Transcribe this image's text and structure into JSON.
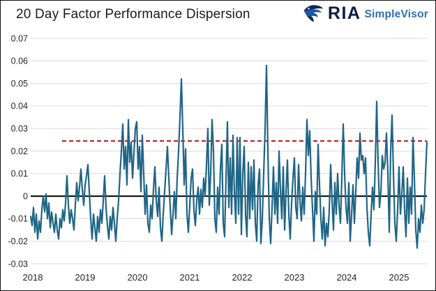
{
  "header": {
    "title": "20 Day Factor Performance Dispersion",
    "logo": {
      "brand": "RIA",
      "product": "SimpleVisor"
    }
  },
  "chart_data": {
    "type": "line",
    "title": "20 Day Factor Performance Dispersion",
    "xlabel": "",
    "ylabel": "",
    "xlim": [
      2017.96,
      2025.534
    ],
    "ylim": [
      -0.03,
      0.07
    ],
    "grid": "horizontal-only",
    "legend": "none",
    "yticks": [
      0.07,
      0.06,
      0.05,
      0.04,
      0.03,
      0.02,
      0.01,
      0,
      -0.01,
      -0.02,
      -0.03
    ],
    "ytick_labels": [
      "0.07",
      "0.06",
      "0.05",
      "0.04",
      "0.03",
      "0.02",
      "0.01",
      "0",
      "-0.01",
      "-0.02",
      "-0.03"
    ],
    "xticks": [
      2018,
      2019,
      2020,
      2021,
      2022,
      2023,
      2024,
      2025
    ],
    "xtick_labels": [
      "2018",
      "2019",
      "2020",
      "2021",
      "2022",
      "2023",
      "2024",
      "2025"
    ],
    "colors": {
      "grid": "#d9d9d9",
      "tick_text": "#262626",
      "line": "#1f6585",
      "zero_line": "#000000",
      "threshold_line": "#bc2823"
    },
    "reference_lines": [
      {
        "name": "zero-line",
        "value": 0,
        "color": "#000000",
        "style": "solid",
        "width": 2,
        "span": [
          2017.96,
          2025.534
        ]
      },
      {
        "name": "dispersion-threshold",
        "value": 0.0245,
        "color": "#bc2823",
        "style": "dashed",
        "width": 2.2,
        "span": [
          2018.56,
          2025.534
        ]
      }
    ],
    "series": [
      {
        "name": "20-day factor performance dispersion",
        "color": "#1f6585",
        "width": 2.2,
        "x_start": 2017.96,
        "x_step": 0.02667,
        "values": [
          -0.009,
          -0.013,
          -0.005,
          -0.016,
          -0.008,
          -0.019,
          -0.011,
          -0.016,
          -0.006,
          0.0,
          -0.007,
          0.001,
          -0.01,
          -0.003,
          -0.014,
          -0.007,
          -0.012,
          -0.016,
          -0.008,
          -0.015,
          -0.019,
          -0.01,
          -0.014,
          -0.006,
          -0.011,
          -0.003,
          0.009,
          -0.004,
          -0.012,
          -0.006,
          -0.01,
          -0.015,
          -0.004,
          0.006,
          -0.002,
          0.004,
          0.012,
          0.003,
          -0.004,
          0.005,
          0.009,
          0.014,
          0.002,
          -0.01,
          -0.019,
          -0.008,
          -0.014,
          -0.02,
          -0.009,
          -0.016,
          -0.006,
          -0.012,
          -0.002,
          0.009,
          -0.005,
          -0.013,
          -0.019,
          -0.009,
          -0.015,
          -0.005,
          -0.012,
          -0.02,
          -0.01,
          -0.002,
          0.01,
          0.02,
          0.032,
          0.012,
          0.022,
          0.005,
          0.034,
          0.015,
          0.024,
          0.008,
          0.019,
          0.03,
          0.033,
          0.012,
          0.022,
          0.002,
          0.027,
          0.01,
          -0.008,
          0.005,
          -0.012,
          -0.016,
          -0.004,
          -0.01,
          0.003,
          0.013,
          -0.002,
          -0.009,
          0.004,
          -0.014,
          -0.02,
          -0.008,
          0.002,
          0.012,
          0.022,
          0.008,
          -0.005,
          -0.017,
          -0.008,
          0.002,
          -0.01,
          0.008,
          0.02,
          0.035,
          0.052,
          0.03,
          0.005,
          0.021,
          -0.008,
          -0.016,
          -0.004,
          0.008,
          0.012,
          -0.006,
          -0.013,
          -0.002,
          0.004,
          -0.008,
          0.003,
          -0.005,
          0.008,
          0.0,
          0.014,
          0.03,
          -0.004,
          0.01,
          0.034,
          0.02,
          -0.01,
          -0.016,
          0.004,
          -0.008,
          0.012,
          0.023,
          -0.012,
          -0.018,
          0.008,
          0.033,
          -0.005,
          0.017,
          -0.008,
          0.027,
          0.002,
          -0.012,
          0.026,
          -0.008,
          0.026,
          -0.017,
          0.01,
          0.022,
          -0.008,
          -0.018,
          0.015,
          -0.01,
          0.013,
          -0.006,
          0.016,
          -0.012,
          -0.02,
          0.005,
          0.012,
          -0.021,
          -0.01,
          0.01,
          0.03,
          0.058,
          0.02,
          -0.01,
          -0.021,
          -0.005,
          0.013,
          -0.008,
          0.006,
          -0.012,
          0.02,
          0.003,
          -0.01,
          0.013,
          -0.015,
          0.002,
          0.016,
          -0.008,
          -0.019,
          -0.003,
          0.008,
          0.017,
          -0.005,
          -0.01,
          0.014,
          -0.002,
          -0.011,
          0.004,
          -0.008,
          0.01,
          0.034,
          0.018,
          0.029,
          0.008,
          -0.006,
          -0.02,
          0.002,
          -0.008,
          0.023,
          0.005,
          -0.01,
          -0.019,
          -0.005,
          -0.022,
          -0.012,
          -0.018,
          -0.006,
          0.014,
          -0.002,
          -0.015,
          0.006,
          -0.008,
          0.01,
          -0.004,
          -0.012,
          0.008,
          0.032,
          0.01,
          -0.005,
          -0.012,
          0.006,
          -0.02,
          -0.008,
          0.005,
          -0.012,
          0.002,
          0.017,
          0.008,
          0.028,
          0.016,
          0.018,
          0.01,
          0.017,
          -0.005,
          -0.016,
          -0.022,
          -0.008,
          0.004,
          -0.006,
          0.015,
          0.042,
          0.015,
          -0.005,
          0.002,
          0.018,
          0.012,
          0.015,
          0.028,
          0.01,
          -0.016,
          0.02,
          0.036,
          0.01,
          -0.012,
          -0.02,
          -0.006,
          0.013,
          -0.008,
          0.001,
          0.013,
          -0.006,
          -0.018,
          0.008,
          -0.012,
          0.004,
          -0.008,
          0.026,
          0.008,
          -0.015,
          -0.023,
          -0.01,
          -0.016,
          -0.004,
          -0.012,
          -0.006,
          0.01,
          0.024
        ]
      }
    ]
  }
}
